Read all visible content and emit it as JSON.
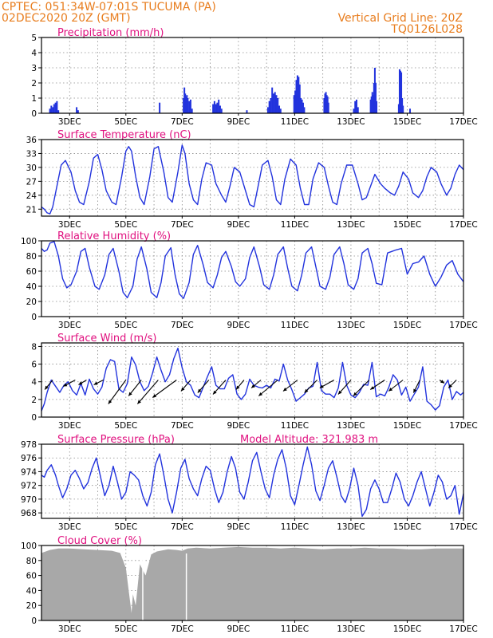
{
  "header": {
    "line1_left": "CPTEC:   051:34W-07:01S   TUCUMA (PA)",
    "line2_left": "02DEC2020  20Z  (GMT)",
    "line1_right": "Vertical Grid Line: 20Z",
    "line2_right": "TQ0126L028"
  },
  "colors": {
    "header": "#e87d1e",
    "panel_title": "#e0107f",
    "line": "#2233dd",
    "bar": "#2233dd",
    "cloud": "#a8a8a8",
    "arrow": "#000000"
  },
  "x_ticks": [
    "3DEC",
    "5DEC",
    "7DEC",
    "9DEC",
    "11DEC",
    "13DEC",
    "15DEC",
    "17DEC"
  ],
  "chart_data": [
    {
      "id": "precip",
      "type": "bar",
      "title": "Precipitation (mm/h)",
      "ylim": [
        0,
        5
      ],
      "yticks": [
        0,
        1,
        2,
        3,
        4,
        5
      ],
      "x_start_day": 2.0,
      "x_end_day": 17.0,
      "grid": true,
      "x": [
        2.3,
        2.35,
        2.4,
        2.45,
        2.5,
        2.55,
        2.6,
        3.25,
        3.3,
        6.2,
        7.05,
        7.08,
        7.11,
        7.14,
        7.17,
        7.2,
        7.25,
        7.3,
        7.35,
        8.1,
        8.15,
        8.2,
        8.25,
        8.3,
        8.35,
        8.4,
        9.3,
        10.05,
        10.1,
        10.15,
        10.2,
        10.25,
        10.3,
        10.35,
        10.4,
        10.45,
        10.5,
        10.98,
        11.02,
        11.06,
        11.1,
        11.14,
        11.18,
        11.22,
        11.26,
        11.3,
        11.34,
        12.05,
        12.08,
        12.11,
        12.14,
        12.17,
        12.2,
        13.1,
        13.15,
        13.2,
        13.25,
        13.7,
        13.73,
        13.76,
        13.79,
        13.82,
        13.85,
        13.88,
        13.91,
        14.7,
        14.73,
        14.76,
        14.79,
        14.82,
        14.85,
        15.1
      ],
      "values": [
        0.3,
        0.5,
        0.4,
        0.6,
        0.7,
        0.8,
        0.2,
        0.4,
        0.2,
        0.7,
        1.0,
        1.7,
        1.3,
        1.1,
        1.2,
        1.0,
        0.8,
        0.9,
        0.3,
        0.6,
        0.8,
        0.6,
        0.7,
        0.9,
        0.5,
        0.3,
        0.2,
        0.4,
        0.8,
        1.0,
        1.7,
        1.3,
        1.4,
        1.2,
        1.0,
        0.5,
        0.3,
        1.2,
        1.5,
        2.2,
        2.5,
        2.4,
        1.9,
        1.0,
        0.9,
        0.7,
        0.4,
        1.0,
        1.3,
        1.4,
        1.2,
        1.1,
        0.7,
        0.3,
        0.8,
        0.9,
        0.4,
        0.9,
        1.1,
        1.4,
        1.2,
        2.0,
        3.0,
        2.0,
        0.8,
        0.6,
        2.9,
        2.8,
        2.7,
        1.0,
        0.5,
        0.3
      ]
    },
    {
      "id": "temp",
      "type": "line",
      "title": "Surface Temperature (nC)",
      "ylim": [
        19.5,
        36
      ],
      "yticks": [
        21,
        24,
        27,
        30,
        33,
        36
      ],
      "x_start_day": 2.0,
      "x_end_day": 17.0,
      "grid": true,
      "x": [
        2.0,
        2.1,
        2.2,
        2.3,
        2.4,
        2.55,
        2.7,
        2.85,
        3.05,
        3.2,
        3.35,
        3.5,
        3.7,
        3.85,
        4.0,
        4.15,
        4.3,
        4.5,
        4.65,
        4.85,
        5.0,
        5.1,
        5.2,
        5.35,
        5.5,
        5.65,
        5.85,
        6.0,
        6.15,
        6.35,
        6.5,
        6.65,
        6.85,
        7.0,
        7.1,
        7.25,
        7.4,
        7.55,
        7.7,
        7.85,
        8.05,
        8.2,
        8.4,
        8.55,
        8.7,
        8.85,
        9.05,
        9.25,
        9.4,
        9.55,
        9.7,
        9.85,
        10.05,
        10.2,
        10.35,
        10.5,
        10.65,
        10.85,
        11.05,
        11.2,
        11.35,
        11.5,
        11.65,
        11.85,
        12.05,
        12.2,
        12.35,
        12.5,
        12.65,
        12.85,
        13.05,
        13.25,
        13.4,
        13.55,
        13.7,
        13.85,
        14.05,
        14.2,
        14.4,
        14.55,
        14.7,
        14.85,
        15.05,
        15.2,
        15.4,
        15.55,
        15.7,
        15.85,
        16.05,
        16.2,
        16.4,
        16.55,
        16.7,
        16.85,
        17.0
      ],
      "values": [
        21.5,
        21.0,
        20.2,
        20.0,
        21.5,
        26.0,
        30.5,
        31.5,
        29.0,
        25.0,
        22.5,
        22.0,
        27.0,
        32.0,
        32.8,
        29.5,
        25.0,
        22.5,
        22.0,
        28.0,
        33.5,
        34.5,
        33.5,
        28.0,
        23.5,
        22.0,
        28.0,
        34.0,
        34.5,
        29.0,
        23.5,
        22.5,
        29.0,
        34.8,
        33.0,
        26.5,
        23.0,
        22.0,
        27.5,
        31.0,
        30.5,
        26.5,
        24.0,
        22.5,
        26.0,
        30.0,
        29.0,
        25.0,
        22.0,
        21.5,
        26.0,
        30.5,
        31.5,
        28.0,
        23.0,
        22.0,
        27.5,
        31.8,
        30.5,
        25.5,
        22.0,
        22.0,
        27.5,
        31.0,
        30.0,
        26.0,
        22.5,
        22.0,
        26.5,
        30.5,
        30.5,
        26.5,
        23.0,
        23.5,
        26.0,
        28.5,
        26.5,
        25.5,
        24.5,
        24.0,
        26.0,
        29.0,
        27.5,
        24.5,
        23.5,
        25.0,
        28.0,
        30.0,
        29.0,
        26.5,
        24.0,
        25.5,
        28.5,
        30.5,
        29.5
      ]
    },
    {
      "id": "rh",
      "type": "line",
      "title": "Relative Humidity (%)",
      "ylim": [
        0,
        100
      ],
      "yticks": [
        0,
        20,
        40,
        60,
        80,
        100
      ],
      "x_start_day": 2.0,
      "x_end_day": 17.0,
      "grid": true,
      "x": [
        2.0,
        2.1,
        2.2,
        2.3,
        2.45,
        2.6,
        2.75,
        2.9,
        3.05,
        3.25,
        3.4,
        3.55,
        3.7,
        3.9,
        4.05,
        4.25,
        4.4,
        4.55,
        4.75,
        4.9,
        5.05,
        5.25,
        5.4,
        5.55,
        5.75,
        5.9,
        6.1,
        6.25,
        6.4,
        6.6,
        6.75,
        6.9,
        7.05,
        7.25,
        7.4,
        7.55,
        7.75,
        7.9,
        8.1,
        8.25,
        8.4,
        8.55,
        8.75,
        8.9,
        9.05,
        9.25,
        9.4,
        9.55,
        9.75,
        9.9,
        10.1,
        10.25,
        10.4,
        10.6,
        10.75,
        10.9,
        11.1,
        11.25,
        11.4,
        11.6,
        11.75,
        11.9,
        12.1,
        12.25,
        12.4,
        12.6,
        12.75,
        12.9,
        13.1,
        13.25,
        13.4,
        13.6,
        13.75,
        13.9,
        14.1,
        14.3,
        14.45,
        14.6,
        14.8,
        15.0,
        15.2,
        15.4,
        15.6,
        15.8,
        16.0,
        16.2,
        16.4,
        16.6,
        16.8,
        17.0
      ],
      "values": [
        90,
        86,
        88,
        97,
        99,
        80,
        50,
        38,
        42,
        60,
        86,
        90,
        65,
        40,
        36,
        55,
        82,
        90,
        60,
        32,
        25,
        40,
        76,
        92,
        62,
        32,
        25,
        45,
        80,
        91,
        55,
        30,
        24,
        45,
        82,
        94,
        68,
        45,
        38,
        55,
        78,
        86,
        66,
        46,
        40,
        50,
        78,
        92,
        66,
        42,
        36,
        55,
        82,
        92,
        64,
        40,
        34,
        55,
        84,
        92,
        66,
        40,
        36,
        52,
        82,
        92,
        70,
        42,
        36,
        50,
        84,
        90,
        70,
        44,
        42,
        84,
        86,
        88,
        90,
        56,
        70,
        72,
        80,
        56,
        40,
        52,
        68,
        74,
        56,
        46
      ]
    },
    {
      "id": "wind",
      "type": "line",
      "title": "Surface Wind (m/s)",
      "ylim": [
        0,
        8.4
      ],
      "yticks": [
        0,
        2,
        4,
        6,
        8
      ],
      "x_start_day": 2.0,
      "x_end_day": 17.0,
      "grid": true,
      "x": [
        2.0,
        2.1,
        2.2,
        2.35,
        2.5,
        2.65,
        2.8,
        2.95,
        3.1,
        3.25,
        3.4,
        3.55,
        3.7,
        3.85,
        4.0,
        4.15,
        4.3,
        4.45,
        4.6,
        4.75,
        4.9,
        5.05,
        5.2,
        5.35,
        5.5,
        5.65,
        5.8,
        5.95,
        6.1,
        6.25,
        6.4,
        6.55,
        6.7,
        6.85,
        7.0,
        7.15,
        7.3,
        7.45,
        7.6,
        7.75,
        7.9,
        8.05,
        8.2,
        8.35,
        8.5,
        8.65,
        8.8,
        8.95,
        9.1,
        9.25,
        9.4,
        9.55,
        9.7,
        9.85,
        10.0,
        10.15,
        10.3,
        10.45,
        10.6,
        10.75,
        10.9,
        11.05,
        11.2,
        11.35,
        11.5,
        11.65,
        11.8,
        11.95,
        12.1,
        12.25,
        12.4,
        12.55,
        12.7,
        12.85,
        13.0,
        13.15,
        13.3,
        13.45,
        13.6,
        13.75,
        13.9,
        14.05,
        14.2,
        14.35,
        14.5,
        14.65,
        14.8,
        14.95,
        15.1,
        15.25,
        15.4,
        15.55,
        15.7,
        15.85,
        16.0,
        16.15,
        16.3,
        16.45,
        16.6,
        16.75,
        16.9,
        17.0
      ],
      "values": [
        0.7,
        1.5,
        2.8,
        4.2,
        3.5,
        2.8,
        3.6,
        4.0,
        3.0,
        2.5,
        3.8,
        2.5,
        4.3,
        3.2,
        2.6,
        3.4,
        5.5,
        6.5,
        6.3,
        3.2,
        2.8,
        3.8,
        6.8,
        5.9,
        4.0,
        3.0,
        3.5,
        5.0,
        6.8,
        5.3,
        4.0,
        4.8,
        6.6,
        7.8,
        5.6,
        4.0,
        3.6,
        2.5,
        2.2,
        3.4,
        4.6,
        5.7,
        3.6,
        3.2,
        3.2,
        4.4,
        4.8,
        2.6,
        2.0,
        2.6,
        4.3,
        3.6,
        3.4,
        3.3,
        3.6,
        3.3,
        4.3,
        4.1,
        6.0,
        4.2,
        3.1,
        1.8,
        2.2,
        2.6,
        3.3,
        3.5,
        6.2,
        3.0,
        2.6,
        2.6,
        2.2,
        3.3,
        6.2,
        3.6,
        2.5,
        2.2,
        2.8,
        3.7,
        3.6,
        6.2,
        2.3,
        2.6,
        2.4,
        3.4,
        4.8,
        4.2,
        2.5,
        3.4,
        1.8,
        2.6,
        3.4,
        5.7,
        1.8,
        1.4,
        0.8,
        1.3,
        3.4,
        4.2,
        2.0,
        2.9,
        2.5,
        2.8
      ]
    },
    {
      "id": "wind_vectors",
      "type": "vector",
      "x": [
        2.4,
        3.2,
        3.6,
        4.2,
        5.0,
        5.55,
        6.15,
        6.8,
        7.3,
        7.95,
        8.55,
        9.2,
        9.8,
        10.4,
        11.1,
        11.8,
        12.4,
        13.0,
        13.65,
        14.2,
        14.85,
        15.45,
        16.15,
        16.75
      ],
      "u": [
        1.0,
        1.5,
        1.0,
        1.2,
        2.2,
        1.6,
        2.6,
        3.0,
        1.2,
        1.4,
        1.6,
        1.0,
        1.2,
        2.4,
        1.8,
        1.6,
        1.8,
        1.6,
        2.0,
        1.8,
        1.8,
        0.8,
        -0.6,
        1.0
      ],
      "v": [
        1.2,
        0.8,
        0.6,
        0.6,
        3.0,
        2.0,
        3.0,
        2.2,
        1.4,
        1.6,
        1.8,
        1.2,
        1.0,
        2.0,
        1.4,
        1.6,
        1.0,
        1.8,
        2.0,
        1.2,
        1.4,
        1.6,
        0.4,
        1.0
      ],
      "base_y": 4.2
    },
    {
      "id": "pres",
      "type": "line",
      "title": "Surface Pressure (hPa)",
      "annotation": "Model Altitude: 321.983 m",
      "ylim": [
        967.2,
        978
      ],
      "yticks": [
        968,
        970,
        972,
        974,
        976,
        978
      ],
      "x_start_day": 2.0,
      "x_end_day": 17.0,
      "grid": true,
      "x": [
        2.0,
        2.1,
        2.2,
        2.35,
        2.5,
        2.6,
        2.75,
        2.9,
        3.05,
        3.2,
        3.35,
        3.5,
        3.65,
        3.8,
        3.95,
        4.1,
        4.25,
        4.4,
        4.55,
        4.7,
        4.85,
        5.0,
        5.15,
        5.3,
        5.45,
        5.6,
        5.75,
        5.9,
        6.05,
        6.2,
        6.35,
        6.5,
        6.65,
        6.8,
        6.95,
        7.1,
        7.25,
        7.4,
        7.55,
        7.7,
        7.85,
        8.0,
        8.15,
        8.3,
        8.45,
        8.6,
        8.75,
        8.9,
        9.05,
        9.2,
        9.35,
        9.5,
        9.65,
        9.8,
        9.95,
        10.1,
        10.25,
        10.4,
        10.55,
        10.7,
        10.85,
        11.0,
        11.15,
        11.3,
        11.45,
        11.6,
        11.75,
        11.9,
        12.05,
        12.2,
        12.35,
        12.5,
        12.65,
        12.8,
        12.95,
        13.1,
        13.25,
        13.4,
        13.55,
        13.7,
        13.85,
        14.0,
        14.15,
        14.3,
        14.45,
        14.6,
        14.75,
        14.9,
        15.05,
        15.2,
        15.35,
        15.5,
        15.65,
        15.8,
        15.95,
        16.1,
        16.25,
        16.4,
        16.55,
        16.7,
        16.85,
        17.0
      ],
      "values": [
        973.5,
        973.2,
        974.2,
        975.0,
        973.5,
        972.0,
        970.2,
        971.5,
        973.5,
        974.2,
        973.0,
        971.5,
        972.4,
        974.5,
        976.0,
        973.2,
        970.5,
        972.0,
        974.8,
        972.5,
        970.0,
        971.0,
        974.0,
        973.5,
        972.8,
        970.5,
        969.0,
        971.0,
        975.0,
        976.6,
        973.5,
        970.0,
        968.0,
        971.0,
        974.5,
        975.8,
        973.0,
        971.5,
        970.5,
        973.0,
        974.8,
        974.2,
        971.5,
        969.5,
        971.0,
        974.0,
        976.2,
        974.5,
        971.0,
        970.0,
        972.5,
        975.6,
        976.8,
        974.0,
        971.5,
        970.2,
        973.5,
        975.8,
        977.2,
        974.5,
        970.5,
        969.2,
        972.0,
        975.0,
        977.6,
        975.0,
        971.2,
        969.8,
        972.0,
        974.5,
        975.6,
        973.2,
        970.5,
        969.5,
        971.5,
        974.5,
        972.0,
        967.5,
        968.5,
        971.5,
        972.8,
        971.5,
        969.5,
        969.5,
        971.5,
        973.8,
        972.5,
        970.0,
        969.0,
        970.5,
        972.5,
        974.0,
        971.5,
        969.0,
        971.0,
        973.5,
        972.5,
        970.0,
        970.5,
        972.0,
        967.8,
        970.8
      ]
    },
    {
      "id": "cloud",
      "type": "area",
      "title": "Cloud Cover (%)",
      "ylim": [
        0,
        100
      ],
      "yticks": [
        0,
        20,
        40,
        60,
        80,
        100
      ],
      "x_start_day": 2.0,
      "x_end_day": 17.0,
      "grid": true,
      "x": [
        2.0,
        2.3,
        2.6,
        3.0,
        3.5,
        4.0,
        4.5,
        4.8,
        5.0,
        5.1,
        5.2,
        5.25,
        5.35,
        5.5,
        5.7,
        5.9,
        6.1,
        6.5,
        6.8,
        7.0,
        7.2,
        7.5,
        8.0,
        8.5,
        9.0,
        9.5,
        10.0,
        10.5,
        11.0,
        11.5,
        12.0,
        12.5,
        13.0,
        13.5,
        14.0,
        14.5,
        15.0,
        15.5,
        16.0,
        16.5,
        17.0
      ],
      "values": [
        90,
        94,
        96,
        96,
        95,
        94,
        93,
        90,
        70,
        40,
        10,
        35,
        20,
        75,
        60,
        88,
        92,
        95,
        94,
        93,
        96,
        97,
        96,
        97,
        98,
        97,
        97,
        96,
        97,
        96,
        95,
        96,
        96,
        97,
        96,
        96,
        95,
        95,
        96,
        96,
        96
      ]
    }
  ]
}
